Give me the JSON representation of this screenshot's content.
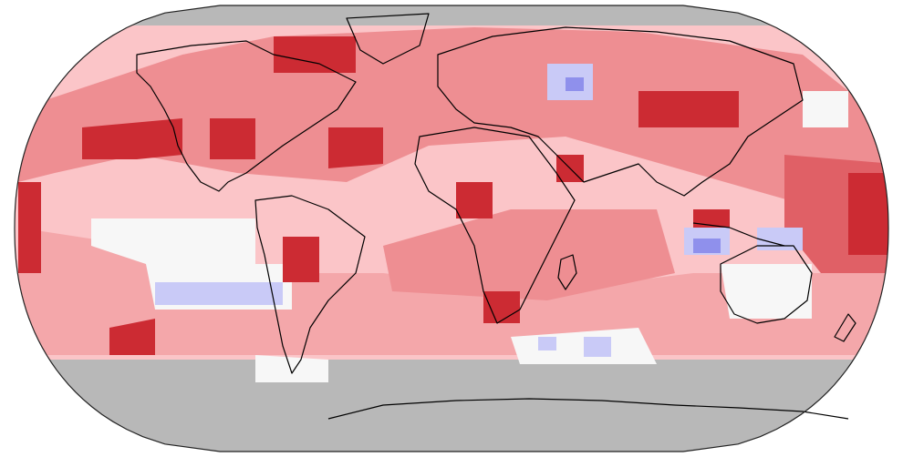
{
  "map": {
    "projection": "robinson",
    "legend_categories": [
      "much-cooler",
      "cooler",
      "near-average",
      "warmer",
      "much-warmer",
      "record-warmest",
      "no-data"
    ],
    "colors": {
      "no_data": "#b8b8b8",
      "near_average": "#f7f7f7",
      "warmer_light": "#fbc5c8",
      "warmer": "#ee8e92",
      "much_warmer": "#e06066",
      "record_warmest": "#cc2b33",
      "cooler_light": "#c9caf7",
      "cooler": "#8f90ec",
      "coastline": "#000000",
      "background": "#ffffff"
    },
    "regions": [
      {
        "name": "arctic-ocean",
        "category": "warmer"
      },
      {
        "name": "north-america",
        "category": "warmer"
      },
      {
        "name": "south-america",
        "category": "much-warmer"
      },
      {
        "name": "europe",
        "category": "warmer"
      },
      {
        "name": "africa",
        "category": "much-warmer"
      },
      {
        "name": "asia",
        "category": "warmer"
      },
      {
        "name": "australia",
        "category": "near-average"
      },
      {
        "name": "antarctica",
        "category": "no-data"
      },
      {
        "name": "siberia",
        "category": "cooler"
      },
      {
        "name": "maritime-continent",
        "category": "cooler"
      },
      {
        "name": "southeast-pacific",
        "category": "cooler"
      }
    ]
  }
}
